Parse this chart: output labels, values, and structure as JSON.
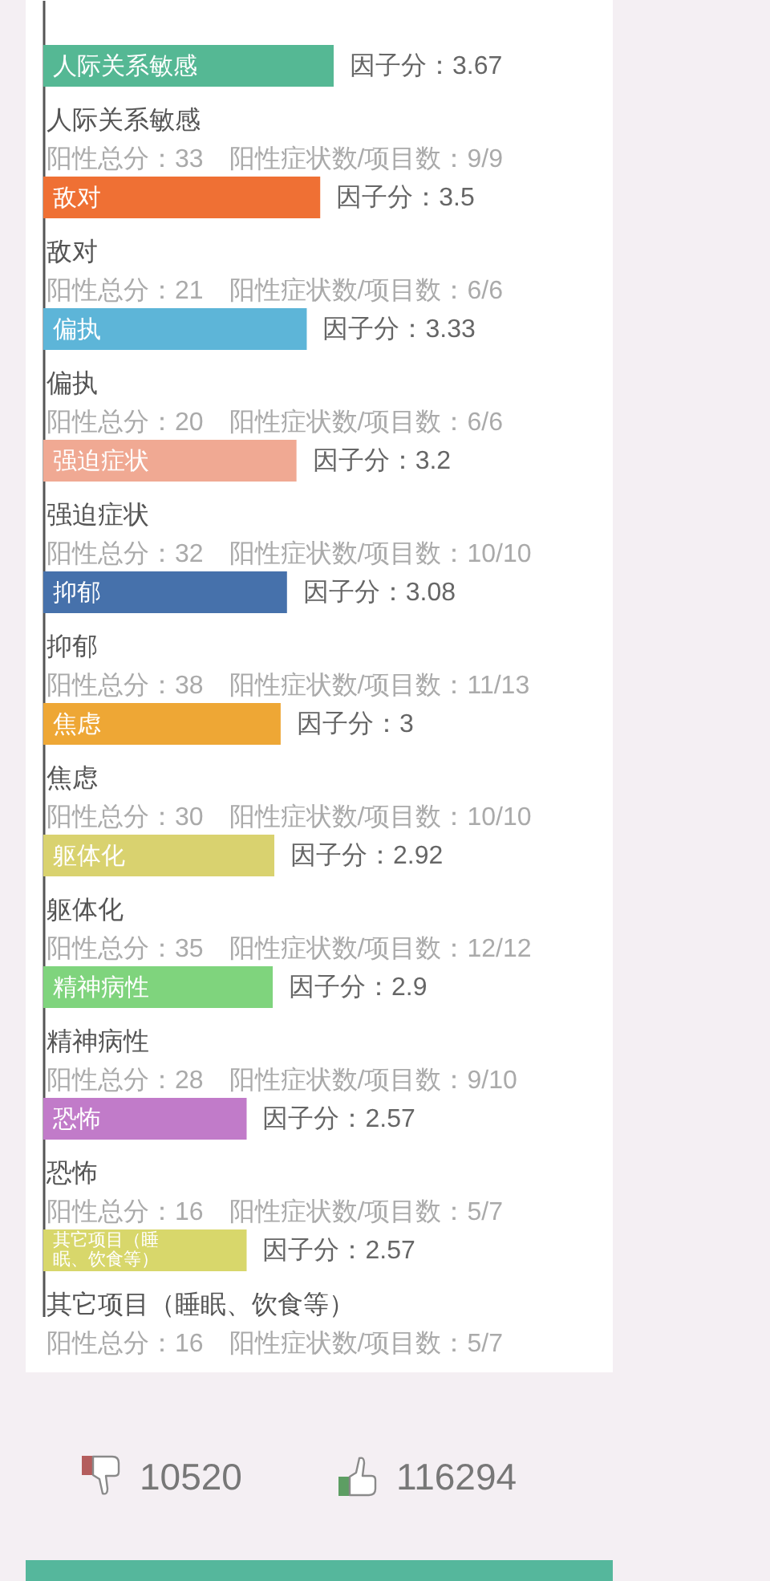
{
  "chart_data": {
    "type": "bar",
    "orientation": "horizontal",
    "categories": [
      "人际关系敏感",
      "敌对",
      "偏执",
      "强迫症状",
      "抑郁",
      "焦虑",
      "躯体化",
      "精神病性",
      "恐怖",
      "其它项目（睡眠、饮食等）"
    ],
    "values": [
      3.67,
      3.5,
      3.33,
      3.2,
      3.08,
      3,
      2.92,
      2.9,
      2.57,
      2.57
    ],
    "colors": [
      "#55b894",
      "#ef7034",
      "#5db5d8",
      "#f0a993",
      "#4671ab",
      "#eea735",
      "#d9d26f",
      "#7fd47d",
      "#c17bc9",
      "#d8d76b"
    ],
    "value_labels": [
      "因子分：3.67",
      "因子分：3.5",
      "因子分：3.33",
      "因子分：3.2",
      "因子分：3.08",
      "因子分：3",
      "因子分：2.92",
      "因子分：2.9",
      "因子分：2.57",
      "因子分：2.57"
    ],
    "tick_labels": false,
    "annotations": [
      "人际关系敏感",
      "阳性总分：33　阳性症状数/项目数：9/9",
      "敌对",
      "阳性总分：21　阳性症状数/项目数：6/6",
      "偏执",
      "阳性总分：20　阳性症状数/项目数：6/6",
      "强迫症状",
      "阳性总分：32　阳性症状数/项目数：10/10",
      "抑郁",
      "阳性总分：38　阳性症状数/项目数：11/13",
      "焦虑",
      "阳性总分：30　阳性症状数/项目数：10/10",
      "躯体化",
      "阳性总分：35　阳性症状数/项目数：12/12",
      "精神病性",
      "阳性总分：28　阳性症状数/项目数：9/10",
      "恐怖",
      "阳性总分：16　阳性症状数/项目数：5/7",
      "其它项目（睡眠、饮食等）",
      "阳性总分：16　阳性症状数/项目数：5/7",
      "10520",
      "116294"
    ]
  }
}
